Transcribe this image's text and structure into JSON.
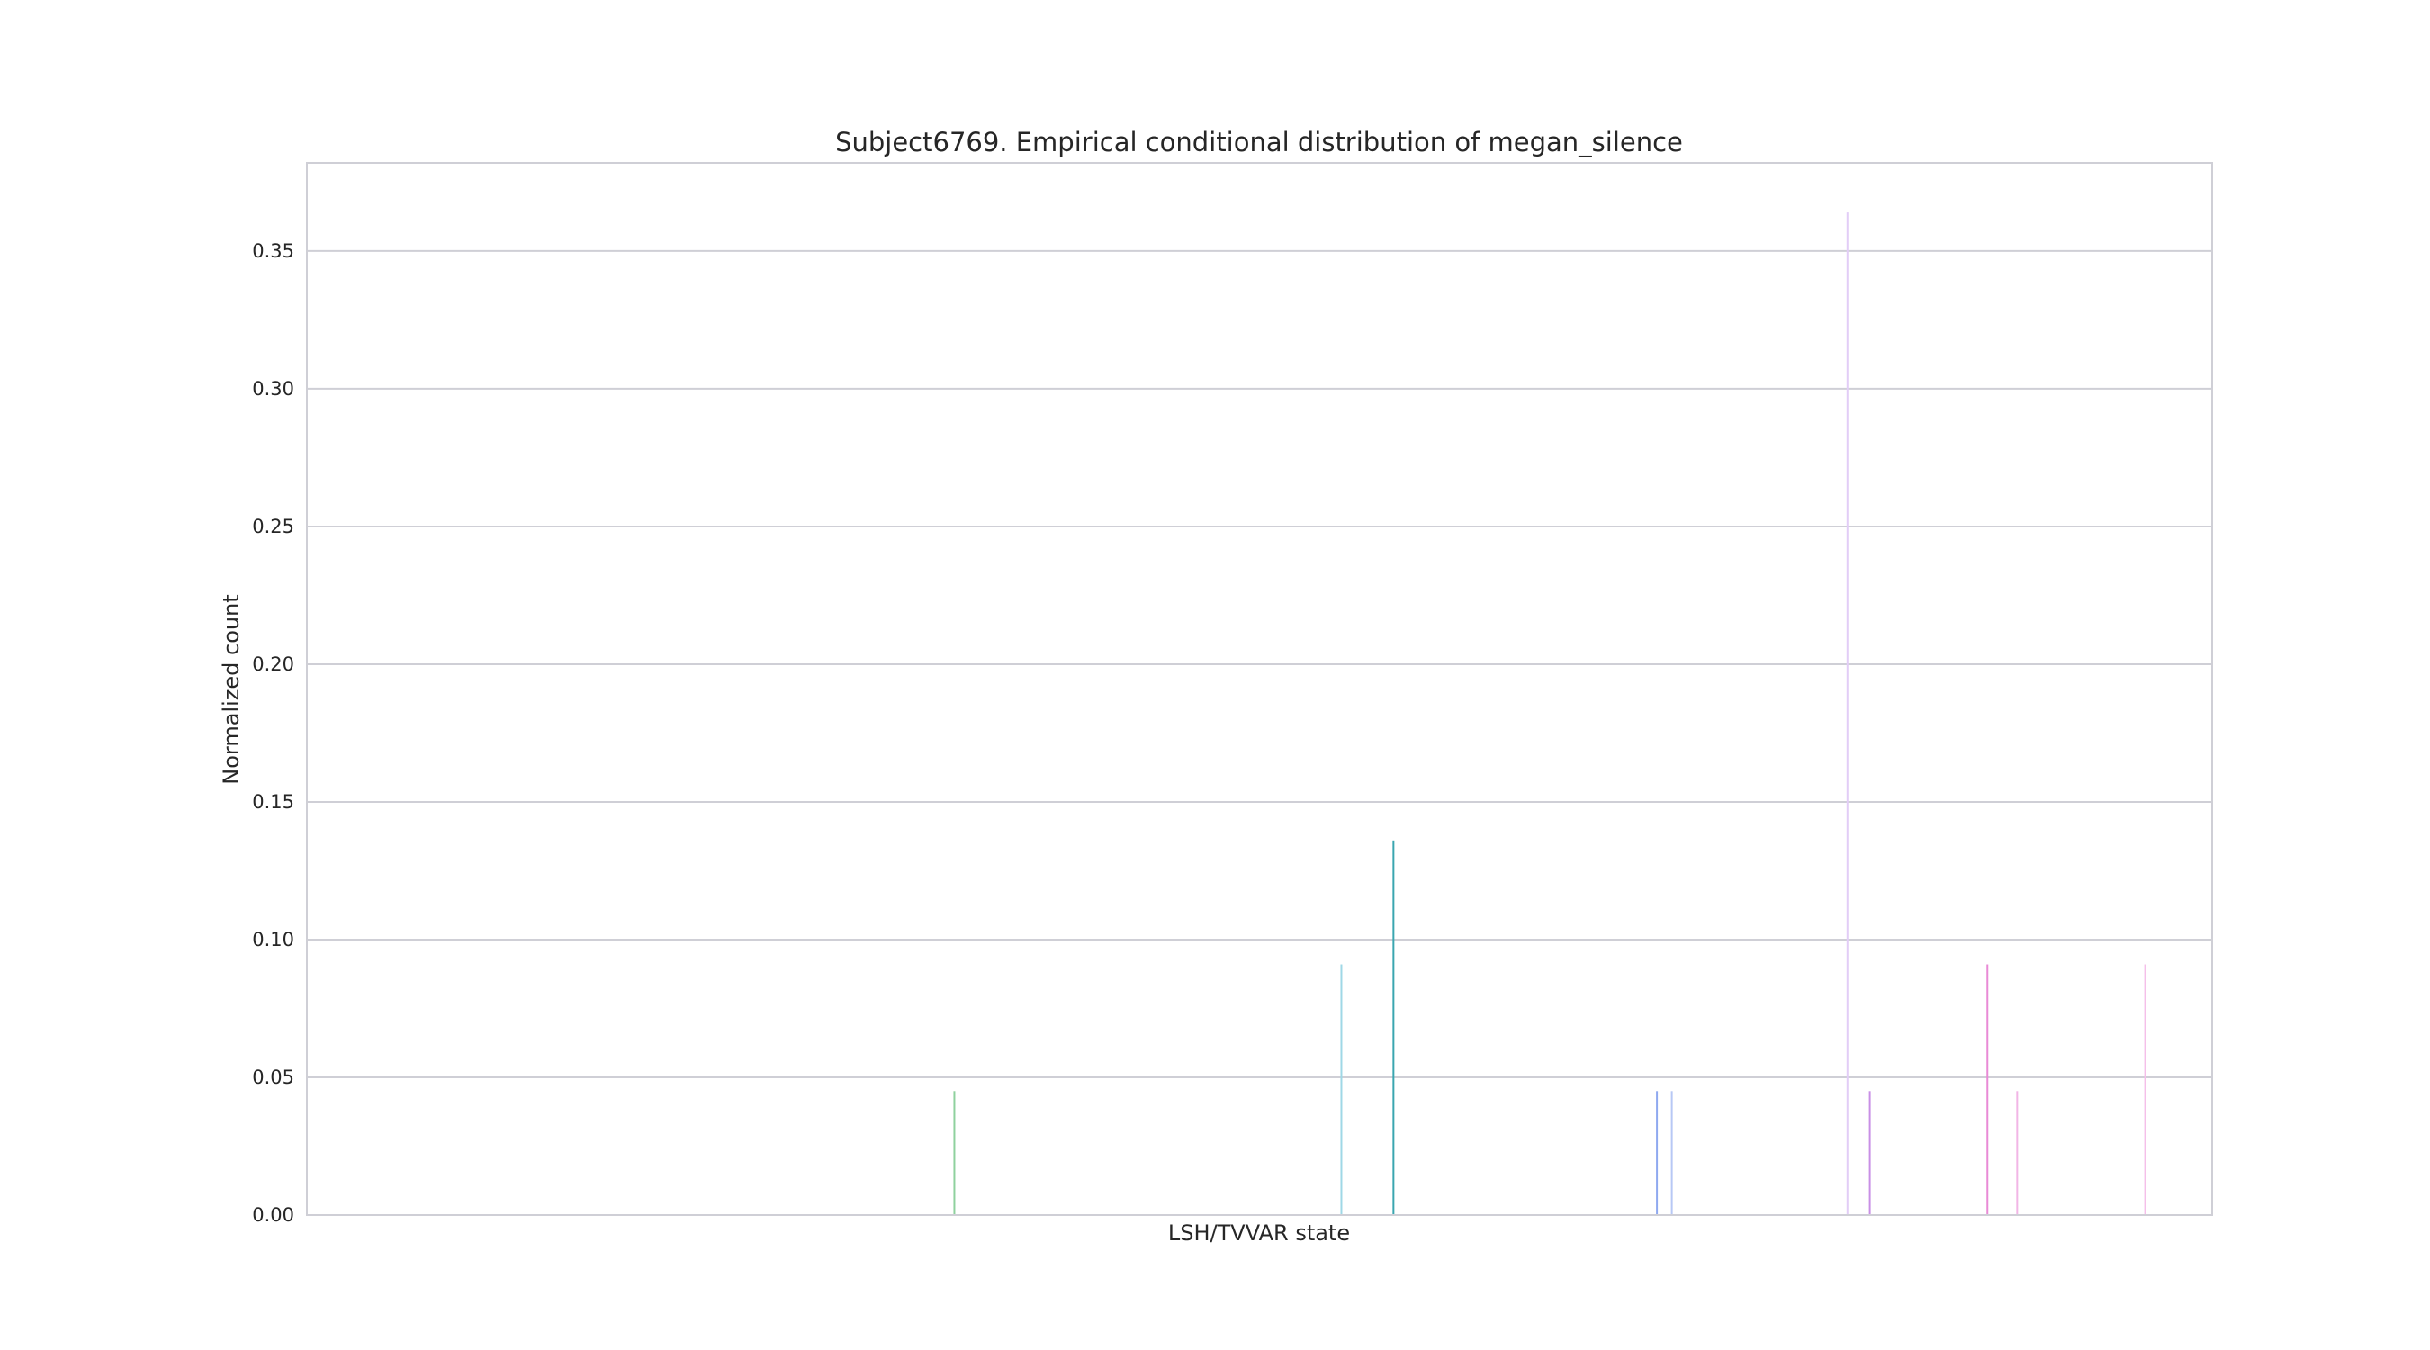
{
  "chart_data": {
    "type": "bar",
    "title": "Subject6769. Empirical conditional distribution of megan_silence",
    "xlabel": "LSH/TVVAR state",
    "ylabel": "Normalized count",
    "ylim": [
      0,
      0.382
    ],
    "yticks": [
      "0.00",
      "0.05",
      "0.10",
      "0.15",
      "0.20",
      "0.25",
      "0.30",
      "0.35"
    ],
    "grid": true,
    "n_categories": 128,
    "bars": [
      {
        "index": 43.5,
        "value": 0.045,
        "color": "#8fd19e"
      },
      {
        "index": 69.5,
        "value": 0.091,
        "color": "#9fd8e6"
      },
      {
        "index": 73.0,
        "value": 0.136,
        "color": "#3aa6b0"
      },
      {
        "index": 90.7,
        "value": 0.045,
        "color": "#8fa9f0"
      },
      {
        "index": 91.7,
        "value": 0.045,
        "color": "#b7c8f5"
      },
      {
        "index": 103.5,
        "value": 0.364,
        "color": "#e2cdf7"
      },
      {
        "index": 105.0,
        "value": 0.045,
        "color": "#c98fe6"
      },
      {
        "index": 112.9,
        "value": 0.091,
        "color": "#e98ad6"
      },
      {
        "index": 114.9,
        "value": 0.045,
        "color": "#f2b5e6"
      },
      {
        "index": 123.5,
        "value": 0.091,
        "color": "#f5bfe9"
      }
    ]
  }
}
